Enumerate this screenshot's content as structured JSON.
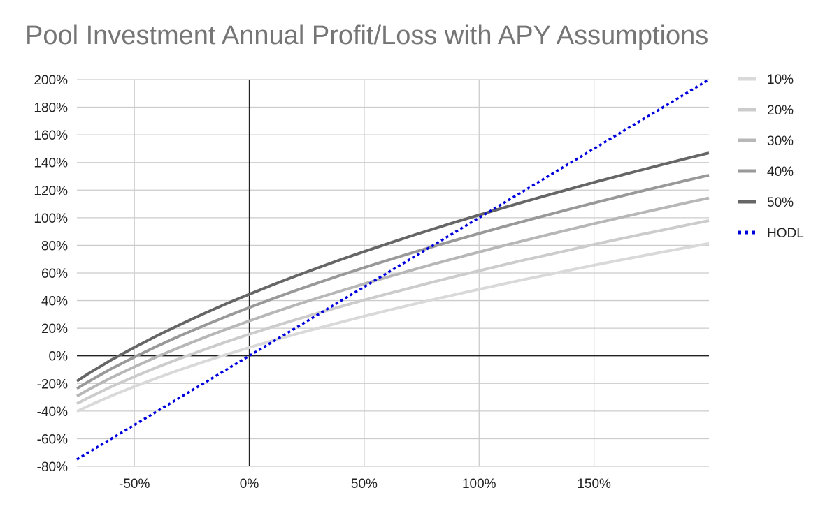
{
  "chart_data": {
    "type": "line",
    "title": "Pool Investment Annual Profit/Loss with APY Assumptions",
    "xlabel": "",
    "ylabel": "",
    "xlim": [
      -75,
      200
    ],
    "ylim": [
      -80,
      200
    ],
    "x_ticks": [
      -50,
      0,
      50,
      100,
      150
    ],
    "x_tick_labels": [
      "-50%",
      "0%",
      "50%",
      "100%",
      "150%"
    ],
    "y_ticks": [
      -80,
      -60,
      -40,
      -20,
      0,
      20,
      40,
      60,
      80,
      100,
      120,
      140,
      160,
      180,
      200
    ],
    "y_tick_labels": [
      "-80%",
      "-60%",
      "-40%",
      "-20%",
      "0%",
      "20%",
      "40%",
      "60%",
      "80%",
      "100%",
      "120%",
      "140%",
      "160%",
      "180%",
      "200%"
    ],
    "grid": true,
    "legend_position": "right",
    "x": [
      -75,
      -70,
      -65,
      -60,
      -50,
      -40,
      -30,
      -20,
      -10,
      0,
      10,
      20,
      30,
      40,
      50,
      60,
      70,
      80,
      90,
      100,
      110,
      120,
      130,
      140,
      150,
      160,
      170,
      180,
      190,
      200
    ],
    "series": [
      {
        "name": "10%",
        "color": "#d9d9d9",
        "style": "solid",
        "values": [
          -40.2,
          -36.3,
          -32.6,
          -29.0,
          -22.2,
          -15.9,
          -10.0,
          -4.4,
          0.9,
          6.0,
          10.9,
          15.6,
          20.1,
          24.4,
          28.7,
          32.8,
          36.8,
          40.7,
          44.5,
          48.2,
          51.8,
          55.4,
          58.8,
          62.2,
          65.6,
          68.9,
          72.1,
          75.2,
          78.3,
          81.4
        ]
      },
      {
        "name": "20%",
        "color": "#cccccc",
        "style": "solid",
        "values": [
          -34.6,
          -30.3,
          -26.3,
          -22.3,
          -15.1,
          -8.2,
          -1.8,
          4.3,
          10.1,
          15.6,
          21.0,
          26.1,
          31.0,
          35.8,
          40.4,
          44.9,
          49.2,
          53.5,
          57.6,
          61.6,
          65.6,
          69.5,
          73.2,
          76.9,
          80.6,
          84.2,
          87.7,
          91.1,
          94.5,
          97.9
        ]
      },
      {
        "name": "30%",
        "color": "#b7b7b7",
        "style": "solid",
        "values": [
          -29.2,
          -24.5,
          -20.1,
          -15.8,
          -8.0,
          -0.5,
          6.4,
          13.0,
          19.3,
          25.3,
          31.1,
          36.7,
          42.0,
          47.1,
          52.1,
          57.0,
          61.7,
          66.3,
          70.8,
          75.2,
          79.5,
          83.6,
          87.7,
          91.7,
          95.7,
          99.5,
          103.3,
          107.0,
          110.7,
          114.3
        ]
      },
      {
        "name": "40%",
        "color": "#999999",
        "style": "solid",
        "values": [
          -23.7,
          -18.7,
          -14.0,
          -9.3,
          -0.9,
          7.1,
          14.6,
          21.7,
          28.5,
          35.0,
          41.2,
          47.2,
          52.9,
          58.5,
          63.9,
          69.1,
          74.2,
          79.1,
          83.9,
          88.6,
          93.2,
          97.7,
          102.1,
          106.5,
          110.7,
          114.9,
          119.0,
          123.0,
          126.9,
          130.8
        ]
      },
      {
        "name": "50%",
        "color": "#666666",
        "style": "solid",
        "values": [
          -18.3,
          -12.9,
          -7.9,
          -2.9,
          6.1,
          14.7,
          22.7,
          30.4,
          37.7,
          44.6,
          51.3,
          57.7,
          63.8,
          69.8,
          75.5,
          81.1,
          86.6,
          91.8,
          97.0,
          102.0,
          106.9,
          111.7,
          116.4,
          121.0,
          125.6,
          130.0,
          134.3,
          138.6,
          142.8,
          146.9
        ]
      },
      {
        "name": "HODL",
        "color": "#0000dd",
        "style": "dotted",
        "values": [
          -75,
          -70,
          -65,
          -60,
          -50,
          -40,
          -30,
          -20,
          -10,
          0,
          10,
          20,
          30,
          40,
          50,
          60,
          70,
          80,
          90,
          100,
          110,
          120,
          130,
          140,
          150,
          160,
          170,
          180,
          190,
          200
        ]
      }
    ]
  }
}
